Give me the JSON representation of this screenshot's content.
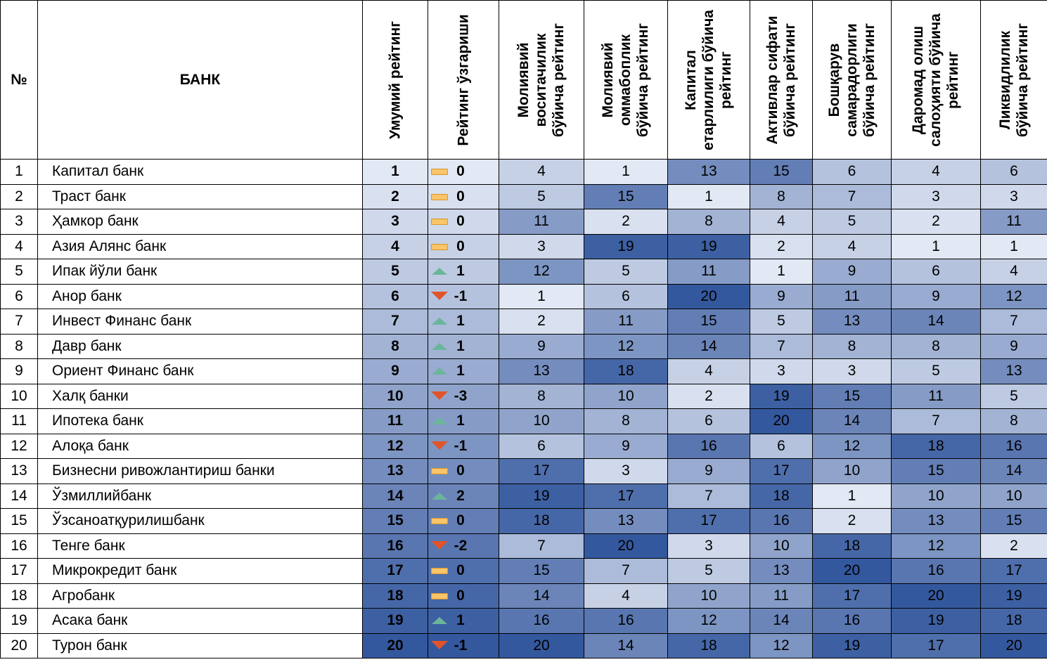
{
  "headers": {
    "num": "№",
    "bank": "БАНК",
    "overall": "Умумий рейтинг",
    "change": "Рейтинг ўзгариши",
    "c1": "Молиявий воситачилик бўйича рейтинг",
    "c2": "Молиявий оммабоплик бўйича рейтинг",
    "c3": "Капитал етарлилиги бўйича рейтинг",
    "c4": "Активлар сифати бўйича рейтинг",
    "c5": "Бошқарув самарадорлиги бўйича рейтинг",
    "c6": "Даромад олиш салоҳияти бўйича рейтинг",
    "c7": "Ликвидлилик бўйича рейтинг"
  },
  "colors": {
    "heat_light": "#e2e8f4",
    "heat_dark": "#34589e",
    "change_up": "#6bb59b",
    "change_down": "#e0542c",
    "change_none": "#f9c46a"
  },
  "rows": [
    {
      "num": "1",
      "bank": "Капитал банк",
      "overall": "1",
      "change": "0",
      "trend": "none",
      "r": [
        "4",
        "1",
        "13",
        "15",
        "6",
        "4",
        "6"
      ]
    },
    {
      "num": "2",
      "bank": "Траст банк",
      "overall": "2",
      "change": "0",
      "trend": "none",
      "r": [
        "5",
        "15",
        "1",
        "8",
        "7",
        "3",
        "3"
      ]
    },
    {
      "num": "3",
      "bank": "Ҳамкор банк",
      "overall": "3",
      "change": "0",
      "trend": "none",
      "r": [
        "11",
        "2",
        "8",
        "4",
        "5",
        "2",
        "11"
      ]
    },
    {
      "num": "4",
      "bank": "Азия Алянс банк",
      "overall": "4",
      "change": "0",
      "trend": "none",
      "r": [
        "3",
        "19",
        "19",
        "2",
        "4",
        "1",
        "1"
      ]
    },
    {
      "num": "5",
      "bank": "Ипак йўли банк",
      "overall": "5",
      "change": "1",
      "trend": "up",
      "r": [
        "12",
        "5",
        "11",
        "1",
        "9",
        "6",
        "4"
      ]
    },
    {
      "num": "6",
      "bank": "Анор банк",
      "overall": "6",
      "change": "-1",
      "trend": "down",
      "r": [
        "1",
        "6",
        "20",
        "9",
        "11",
        "9",
        "12"
      ]
    },
    {
      "num": "7",
      "bank": "Инвест Финанс банк",
      "overall": "7",
      "change": "1",
      "trend": "up",
      "r": [
        "2",
        "11",
        "15",
        "5",
        "13",
        "14",
        "7"
      ]
    },
    {
      "num": "8",
      "bank": "Давр банк",
      "overall": "8",
      "change": "1",
      "trend": "up",
      "r": [
        "9",
        "12",
        "14",
        "7",
        "8",
        "8",
        "9"
      ]
    },
    {
      "num": "9",
      "bank": "Ориент Финанс банк",
      "overall": "9",
      "change": "1",
      "trend": "up",
      "r": [
        "13",
        "18",
        "4",
        "3",
        "3",
        "5",
        "13"
      ]
    },
    {
      "num": "10",
      "bank": "Халқ банки",
      "overall": "10",
      "change": "-3",
      "trend": "down",
      "r": [
        "8",
        "10",
        "2",
        "19",
        "15",
        "11",
        "5"
      ]
    },
    {
      "num": "11",
      "bank": "Ипотека банк",
      "overall": "11",
      "change": "1",
      "trend": "up",
      "r": [
        "10",
        "8",
        "6",
        "20",
        "14",
        "7",
        "8"
      ]
    },
    {
      "num": "12",
      "bank": "Алоқа банк",
      "overall": "12",
      "change": "-1",
      "trend": "down",
      "r": [
        "6",
        "9",
        "16",
        "6",
        "12",
        "18",
        "16"
      ]
    },
    {
      "num": "13",
      "bank": "Бизнесни ривожлантириш банки",
      "overall": "13",
      "change": "0",
      "trend": "none",
      "r": [
        "17",
        "3",
        "9",
        "17",
        "10",
        "15",
        "14"
      ]
    },
    {
      "num": "14",
      "bank": "Ўзмиллийбанк",
      "overall": "14",
      "change": "2",
      "trend": "up",
      "r": [
        "19",
        "17",
        "7",
        "18",
        "1",
        "10",
        "10"
      ]
    },
    {
      "num": "15",
      "bank": "Ўзсаноатқурилишбанк",
      "overall": "15",
      "change": "0",
      "trend": "none",
      "r": [
        "18",
        "13",
        "17",
        "16",
        "2",
        "13",
        "15"
      ]
    },
    {
      "num": "16",
      "bank": "Тенге банк",
      "overall": "16",
      "change": "-2",
      "trend": "down",
      "r": [
        "7",
        "20",
        "3",
        "10",
        "18",
        "12",
        "2"
      ]
    },
    {
      "num": "17",
      "bank": "Микрокредит банк",
      "overall": "17",
      "change": "0",
      "trend": "none",
      "r": [
        "15",
        "7",
        "5",
        "13",
        "20",
        "16",
        "17"
      ]
    },
    {
      "num": "18",
      "bank": "Агробанк",
      "overall": "18",
      "change": "0",
      "trend": "none",
      "r": [
        "14",
        "4",
        "10",
        "11",
        "17",
        "20",
        "19"
      ]
    },
    {
      "num": "19",
      "bank": "Асака банк",
      "overall": "19",
      "change": "1",
      "trend": "up",
      "r": [
        "16",
        "16",
        "12",
        "14",
        "16",
        "19",
        "18"
      ]
    },
    {
      "num": "20",
      "bank": "Турон банк",
      "overall": "20",
      "change": "-1",
      "trend": "down",
      "r": [
        "20",
        "14",
        "18",
        "12",
        "19",
        "17",
        "20"
      ]
    }
  ]
}
